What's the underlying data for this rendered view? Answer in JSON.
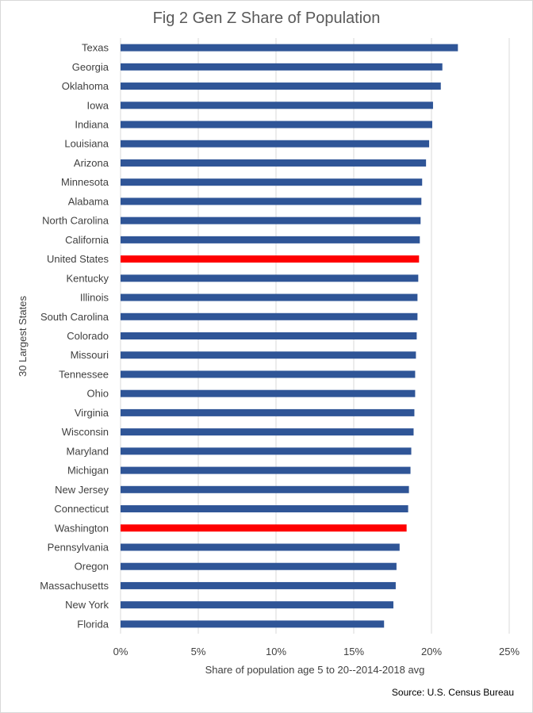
{
  "chart_data": {
    "type": "bar",
    "orientation": "horizontal",
    "title": "Fig 2 Gen Z Share of Population",
    "xlabel": "Share of population  age 5 to 20--2014-2018  avg",
    "ylabel": "30 Largest States",
    "xlim": [
      0,
      0.25
    ],
    "xticks": [
      0,
      0.05,
      0.1,
      0.15,
      0.2,
      0.25
    ],
    "xtick_labels": [
      "0%",
      "5%",
      "10%",
      "15%",
      "20%",
      "25%"
    ],
    "grid": "vertical",
    "categories": [
      "Texas",
      "Georgia",
      "Oklahoma",
      "Iowa",
      "Indiana",
      "Louisiana",
      "Arizona",
      "Minnesota",
      "Alabama",
      "North Carolina",
      "California",
      "United States",
      "Kentucky",
      "Illinois",
      "South Carolina",
      "Colorado",
      "Missouri",
      "Tennessee",
      "Ohio",
      "Virginia",
      "Wisconsin",
      "Maryland",
      "Michigan",
      "New Jersey",
      "Connecticut",
      "Washington",
      "Pennsylvania",
      "Oregon",
      "Massachusetts",
      "New York",
      "Florida"
    ],
    "values": [
      0.217,
      0.207,
      0.206,
      0.201,
      0.2005,
      0.1985,
      0.1965,
      0.194,
      0.1935,
      0.193,
      0.1925,
      0.192,
      0.1915,
      0.191,
      0.191,
      0.1905,
      0.19,
      0.1895,
      0.1895,
      0.189,
      0.1885,
      0.187,
      0.1865,
      0.1855,
      0.185,
      0.184,
      0.1795,
      0.1775,
      0.177,
      0.1755,
      0.1695
    ],
    "highlighted": [
      "United States",
      "Washington"
    ],
    "colors": {
      "default": "#2f5597",
      "highlight": "#ff0000",
      "grid": "#d9d9d9",
      "text": "#404040"
    }
  },
  "source": "Source: U.S. Census Bureau"
}
